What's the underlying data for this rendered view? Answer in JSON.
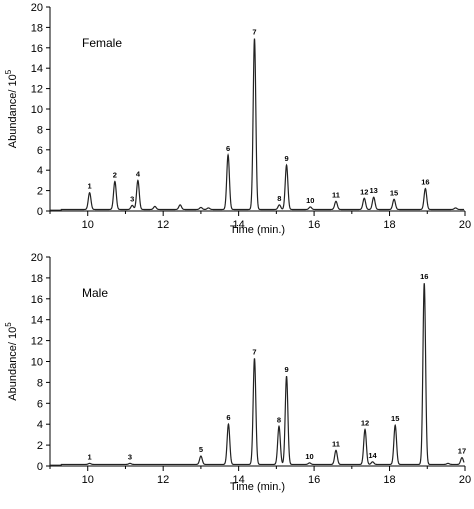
{
  "chart_data": [
    {
      "type": "line",
      "title": "Female",
      "xlabel": "Time (min.)",
      "ylabel": "Abundance/ 10",
      "ylabel_exponent": "5",
      "xlim": [
        9,
        20
      ],
      "ylim": [
        0,
        20
      ],
      "xticks": [
        10,
        12,
        14,
        16,
        18,
        20
      ],
      "yticks": [
        0,
        2,
        4,
        6,
        8,
        10,
        12,
        14,
        16,
        18,
        20
      ],
      "baseline": 0.15,
      "peaks": [
        {
          "label": "1",
          "x": 10.05,
          "y": 1.8
        },
        {
          "label": "2",
          "x": 10.72,
          "y": 2.9
        },
        {
          "label": "3",
          "x": 11.18,
          "y": 0.55
        },
        {
          "label": "4",
          "x": 11.33,
          "y": 3.0
        },
        {
          "label": "",
          "x": 11.78,
          "y": 0.45
        },
        {
          "label": "",
          "x": 12.45,
          "y": 0.6
        },
        {
          "label": "",
          "x": 13.0,
          "y": 0.35
        },
        {
          "label": "",
          "x": 13.2,
          "y": 0.3
        },
        {
          "label": "6",
          "x": 13.72,
          "y": 5.5
        },
        {
          "label": "7",
          "x": 14.42,
          "y": 16.9
        },
        {
          "label": "8",
          "x": 15.08,
          "y": 0.6
        },
        {
          "label": "9",
          "x": 15.27,
          "y": 4.5
        },
        {
          "label": "10",
          "x": 15.9,
          "y": 0.4
        },
        {
          "label": "11",
          "x": 16.58,
          "y": 0.95
        },
        {
          "label": "12",
          "x": 17.33,
          "y": 1.25
        },
        {
          "label": "13",
          "x": 17.58,
          "y": 1.35
        },
        {
          "label": "15",
          "x": 18.12,
          "y": 1.15
        },
        {
          "label": "16",
          "x": 18.95,
          "y": 2.2
        },
        {
          "label": "",
          "x": 19.75,
          "y": 0.3
        }
      ]
    },
    {
      "type": "line",
      "title": "Male",
      "xlabel": "Time (min.)",
      "ylabel": "Abundance/ 10",
      "ylabel_exponent": "5",
      "xlim": [
        9,
        20
      ],
      "ylim": [
        0,
        20
      ],
      "xticks": [
        10,
        12,
        14,
        16,
        18,
        20
      ],
      "yticks": [
        0,
        2,
        4,
        6,
        8,
        10,
        12,
        14,
        16,
        18,
        20
      ],
      "baseline": 0.15,
      "peaks": [
        {
          "label": "1",
          "x": 10.05,
          "y": 0.25
        },
        {
          "label": "3",
          "x": 11.12,
          "y": 0.25
        },
        {
          "label": "5",
          "x": 13.0,
          "y": 0.95
        },
        {
          "label": "6",
          "x": 13.73,
          "y": 4.0
        },
        {
          "label": "7",
          "x": 14.42,
          "y": 10.3
        },
        {
          "label": "8",
          "x": 15.07,
          "y": 3.8
        },
        {
          "label": "9",
          "x": 15.27,
          "y": 8.6
        },
        {
          "label": "10",
          "x": 15.88,
          "y": 0.3
        },
        {
          "label": "11",
          "x": 16.58,
          "y": 1.5
        },
        {
          "label": "12",
          "x": 17.35,
          "y": 3.5
        },
        {
          "label": "14",
          "x": 17.55,
          "y": 0.4
        },
        {
          "label": "15",
          "x": 18.15,
          "y": 3.9
        },
        {
          "label": "16",
          "x": 18.92,
          "y": 17.5
        },
        {
          "label": "",
          "x": 19.55,
          "y": 0.25
        },
        {
          "label": "17",
          "x": 19.92,
          "y": 0.8
        }
      ]
    }
  ]
}
